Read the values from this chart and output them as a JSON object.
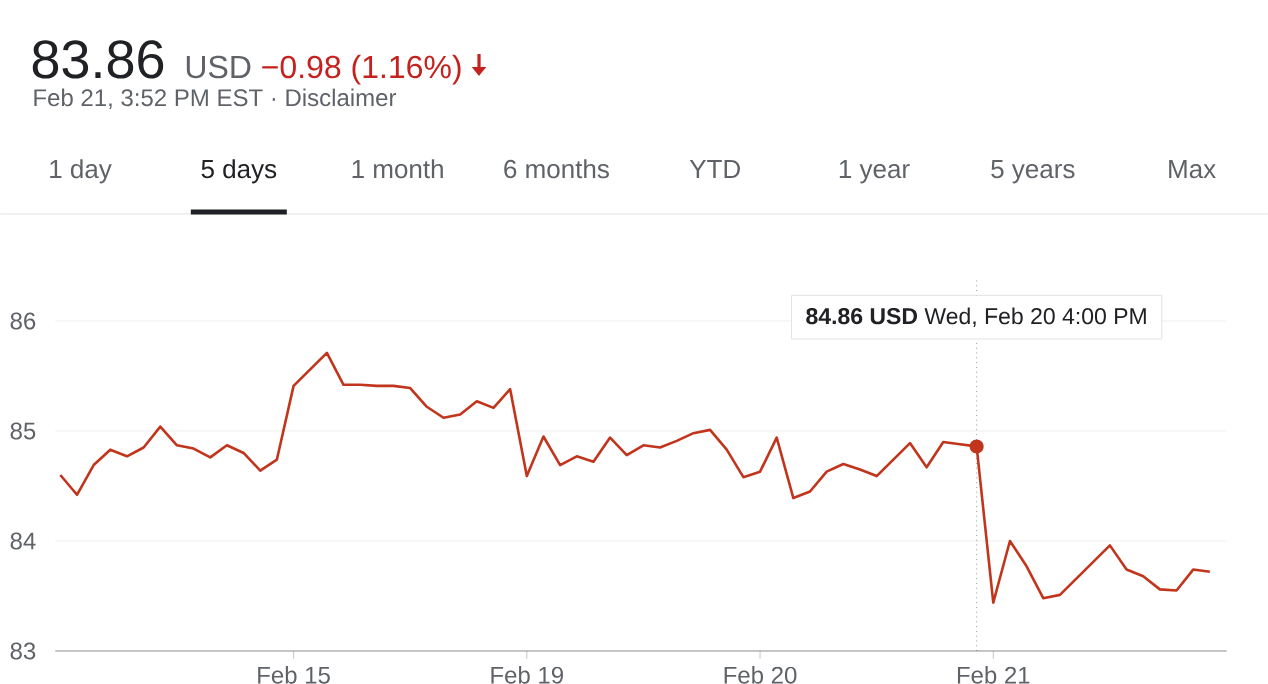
{
  "chart_data": {
    "type": "line",
    "title": "83.86",
    "subtitle": "Feb 21, 3:52 PM EST · Disclaimer",
    "annotations": [
      "USD",
      "−0.98 (1.16%)",
      "1 day",
      "5 days",
      "1 month",
      "6 months",
      "YTD",
      "1 year",
      "5 years",
      "Max",
      "**84.86 USD**  Wed, Feb 20 4:00 PM"
    ],
    "categories": [
      null,
      null,
      null,
      null,
      null,
      null,
      null,
      null,
      null,
      null,
      null,
      null,
      null,
      null,
      "Feb 15",
      null,
      null,
      null,
      null,
      null,
      null,
      null,
      null,
      null,
      null,
      null,
      null,
      null,
      "Feb 19",
      null,
      null,
      null,
      null,
      null,
      null,
      null,
      null,
      null,
      null,
      null,
      null,
      null,
      "Feb 20",
      null,
      null,
      null,
      null,
      null,
      null,
      null,
      null,
      null,
      null,
      null,
      null,
      null,
      "Feb 21",
      null,
      null,
      null,
      null,
      null,
      null,
      null,
      null,
      null,
      null,
      null,
      null,
      null
    ],
    "series": [
      {
        "color": "#c1351d",
        "values": [
          84.6,
          84.42,
          84.69,
          84.83,
          84.77,
          84.85,
          85.04,
          84.87,
          84.84,
          84.76,
          84.87,
          84.8,
          84.64,
          84.74,
          85.41,
          85.56,
          85.71,
          85.42,
          85.42,
          85.41,
          85.41,
          85.39,
          85.22,
          85.12,
          85.15,
          85.27,
          85.21,
          85.38,
          84.59,
          84.95,
          84.69,
          84.77,
          84.72,
          84.94,
          84.78,
          84.87,
          84.85,
          84.91,
          84.98,
          85.01,
          84.83,
          84.58,
          84.63,
          84.94,
          84.39,
          84.45,
          84.63,
          84.7,
          84.65,
          84.59,
          84.74,
          84.89,
          84.67,
          84.9,
          84.88,
          84.86,
          83.44,
          84.0,
          83.77,
          83.48,
          83.51,
          83.66,
          83.81,
          83.96,
          83.74,
          83.68,
          83.56,
          83.55,
          83.74,
          83.72
        ]
      }
    ],
    "ylim": [
      83,
      86.4
    ],
    "yticks": [
      83,
      84,
      85,
      86
    ],
    "grid": "y"
  }
}
